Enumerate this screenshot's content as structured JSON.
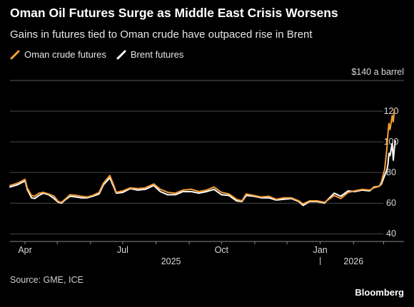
{
  "header": {
    "title": "Oman Oil Futures Surge as Middle East Crisis Worsens",
    "subtitle": "Gains in futures tied to Oman crude have outpaced rise in Brent"
  },
  "footer": {
    "source": "Source: GME, ICE",
    "brand": "Bloomberg"
  },
  "chart_data": {
    "type": "line",
    "y_unit_label": "$140 a barrel",
    "ylim": [
      35,
      140
    ],
    "yticks": [
      40,
      60,
      80,
      100,
      120
    ],
    "ytick_labels": [
      "40",
      "60",
      "80",
      "100",
      "120"
    ],
    "xlim": [
      "2025-03-18",
      "2026-03-20"
    ],
    "xticks": [
      {
        "date": "2025-04-01",
        "label": "Apr"
      },
      {
        "date": "2025-07-01",
        "label": "Jul"
      },
      {
        "date": "2025-10-01",
        "label": "Oct"
      },
      {
        "date": "2026-01-01",
        "label": "Jan"
      }
    ],
    "year_labels": [
      {
        "date": "2025-08-15",
        "label": "2025"
      },
      {
        "date": "2026-02-01",
        "label": "2026"
      }
    ],
    "year_divider": "2026-01-01",
    "grid": true,
    "legend_position": "top-left",
    "series": [
      {
        "name": "Oman crude futures",
        "color": "#f7a03a",
        "points": [
          [
            "2025-03-18",
            71.5
          ],
          [
            "2025-03-25",
            73.0
          ],
          [
            "2025-04-01",
            75.5
          ],
          [
            "2025-04-03",
            70.0
          ],
          [
            "2025-04-07",
            65.0
          ],
          [
            "2025-04-10",
            64.5
          ],
          [
            "2025-04-14",
            66.5
          ],
          [
            "2025-04-18",
            67.0
          ],
          [
            "2025-04-23",
            66.0
          ],
          [
            "2025-04-28",
            64.5
          ],
          [
            "2025-05-02",
            61.0
          ],
          [
            "2025-05-05",
            60.5
          ],
          [
            "2025-05-09",
            63.0
          ],
          [
            "2025-05-13",
            65.5
          ],
          [
            "2025-05-19",
            65.0
          ],
          [
            "2025-05-23",
            64.5
          ],
          [
            "2025-05-29",
            64.0
          ],
          [
            "2025-06-03",
            65.0
          ],
          [
            "2025-06-09",
            67.0
          ],
          [
            "2025-06-13",
            73.0
          ],
          [
            "2025-06-19",
            78.0
          ],
          [
            "2025-06-23",
            71.0
          ],
          [
            "2025-06-25",
            67.0
          ],
          [
            "2025-07-01",
            68.0
          ],
          [
            "2025-07-08",
            70.0
          ],
          [
            "2025-07-15",
            69.5
          ],
          [
            "2025-07-22",
            70.0
          ],
          [
            "2025-07-30",
            72.5
          ],
          [
            "2025-08-05",
            69.0
          ],
          [
            "2025-08-12",
            67.0
          ],
          [
            "2025-08-19",
            66.5
          ],
          [
            "2025-08-26",
            68.5
          ],
          [
            "2025-09-03",
            69.0
          ],
          [
            "2025-09-10",
            67.5
          ],
          [
            "2025-09-17",
            68.5
          ],
          [
            "2025-09-24",
            70.5
          ],
          [
            "2025-10-01",
            67.0
          ],
          [
            "2025-10-08",
            66.0
          ],
          [
            "2025-10-15",
            62.5
          ],
          [
            "2025-10-20",
            61.5
          ],
          [
            "2025-10-24",
            66.0
          ],
          [
            "2025-10-31",
            65.0
          ],
          [
            "2025-11-07",
            64.0
          ],
          [
            "2025-11-14",
            64.5
          ],
          [
            "2025-11-21",
            62.5
          ],
          [
            "2025-11-28",
            63.5
          ],
          [
            "2025-12-05",
            63.5
          ],
          [
            "2025-12-12",
            61.5
          ],
          [
            "2025-12-16",
            59.5
          ],
          [
            "2025-12-22",
            61.5
          ],
          [
            "2025-12-29",
            61.5
          ],
          [
            "2026-01-05",
            60.5
          ],
          [
            "2026-01-09",
            62.5
          ],
          [
            "2026-01-14",
            65.0
          ],
          [
            "2026-01-20",
            63.0
          ],
          [
            "2026-01-27",
            67.0
          ],
          [
            "2026-02-02",
            68.0
          ],
          [
            "2026-02-09",
            69.0
          ],
          [
            "2026-02-16",
            68.5
          ],
          [
            "2026-02-20",
            70.0
          ],
          [
            "2026-02-25",
            71.0
          ],
          [
            "2026-02-27",
            74.0
          ],
          [
            "2026-03-02",
            82.0
          ],
          [
            "2026-03-04",
            95.0
          ],
          [
            "2026-03-05",
            105.0
          ],
          [
            "2026-03-06",
            112.0
          ],
          [
            "2026-03-07",
            108.0
          ],
          [
            "2026-03-09",
            117.0
          ],
          [
            "2026-03-10",
            113.0
          ],
          [
            "2026-03-11",
            121.0
          ]
        ]
      },
      {
        "name": "Brent futures",
        "color": "#ffffff",
        "points": [
          [
            "2025-03-18",
            70.5
          ],
          [
            "2025-03-25",
            72.0
          ],
          [
            "2025-04-01",
            74.5
          ],
          [
            "2025-04-03",
            69.0
          ],
          [
            "2025-04-07",
            63.5
          ],
          [
            "2025-04-10",
            63.0
          ],
          [
            "2025-04-14",
            65.0
          ],
          [
            "2025-04-18",
            66.5
          ],
          [
            "2025-04-23",
            65.5
          ],
          [
            "2025-04-28",
            63.0
          ],
          [
            "2025-05-02",
            60.5
          ],
          [
            "2025-05-05",
            60.0
          ],
          [
            "2025-05-09",
            62.5
          ],
          [
            "2025-05-13",
            64.5
          ],
          [
            "2025-05-19",
            64.0
          ],
          [
            "2025-05-23",
            63.5
          ],
          [
            "2025-05-29",
            63.5
          ],
          [
            "2025-06-03",
            64.5
          ],
          [
            "2025-06-09",
            66.0
          ],
          [
            "2025-06-13",
            72.0
          ],
          [
            "2025-06-19",
            76.5
          ],
          [
            "2025-06-23",
            70.0
          ],
          [
            "2025-06-25",
            66.5
          ],
          [
            "2025-07-01",
            67.0
          ],
          [
            "2025-07-08",
            69.5
          ],
          [
            "2025-07-15",
            68.5
          ],
          [
            "2025-07-22",
            69.0
          ],
          [
            "2025-07-30",
            71.5
          ],
          [
            "2025-08-05",
            67.5
          ],
          [
            "2025-08-12",
            65.5
          ],
          [
            "2025-08-19",
            65.5
          ],
          [
            "2025-08-26",
            67.5
          ],
          [
            "2025-09-03",
            67.5
          ],
          [
            "2025-09-10",
            66.5
          ],
          [
            "2025-09-17",
            67.5
          ],
          [
            "2025-09-24",
            69.0
          ],
          [
            "2025-10-01",
            65.5
          ],
          [
            "2025-10-08",
            65.0
          ],
          [
            "2025-10-15",
            61.5
          ],
          [
            "2025-10-20",
            61.0
          ],
          [
            "2025-10-24",
            65.0
          ],
          [
            "2025-10-31",
            64.5
          ],
          [
            "2025-11-07",
            63.5
          ],
          [
            "2025-11-14",
            63.5
          ],
          [
            "2025-11-21",
            62.0
          ],
          [
            "2025-11-28",
            62.5
          ],
          [
            "2025-12-05",
            63.0
          ],
          [
            "2025-12-12",
            61.0
          ],
          [
            "2025-12-16",
            58.5
          ],
          [
            "2025-12-22",
            61.0
          ],
          [
            "2025-12-29",
            61.0
          ],
          [
            "2026-01-05",
            60.0
          ],
          [
            "2026-01-09",
            63.0
          ],
          [
            "2026-01-14",
            66.5
          ],
          [
            "2026-01-20",
            64.5
          ],
          [
            "2026-01-27",
            68.0
          ],
          [
            "2026-02-02",
            67.5
          ],
          [
            "2026-02-09",
            68.5
          ],
          [
            "2026-02-16",
            68.0
          ],
          [
            "2026-02-20",
            70.5
          ],
          [
            "2026-02-25",
            71.0
          ],
          [
            "2026-02-27",
            72.5
          ],
          [
            "2026-03-02",
            78.0
          ],
          [
            "2026-03-04",
            81.5
          ],
          [
            "2026-03-05",
            85.0
          ],
          [
            "2026-03-06",
            92.5
          ],
          [
            "2026-03-07",
            91.0
          ],
          [
            "2026-03-09",
            99.0
          ],
          [
            "2026-03-10",
            88.0
          ],
          [
            "2026-03-11",
            96.0
          ],
          [
            "2026-03-12",
            100.5
          ]
        ]
      }
    ]
  }
}
